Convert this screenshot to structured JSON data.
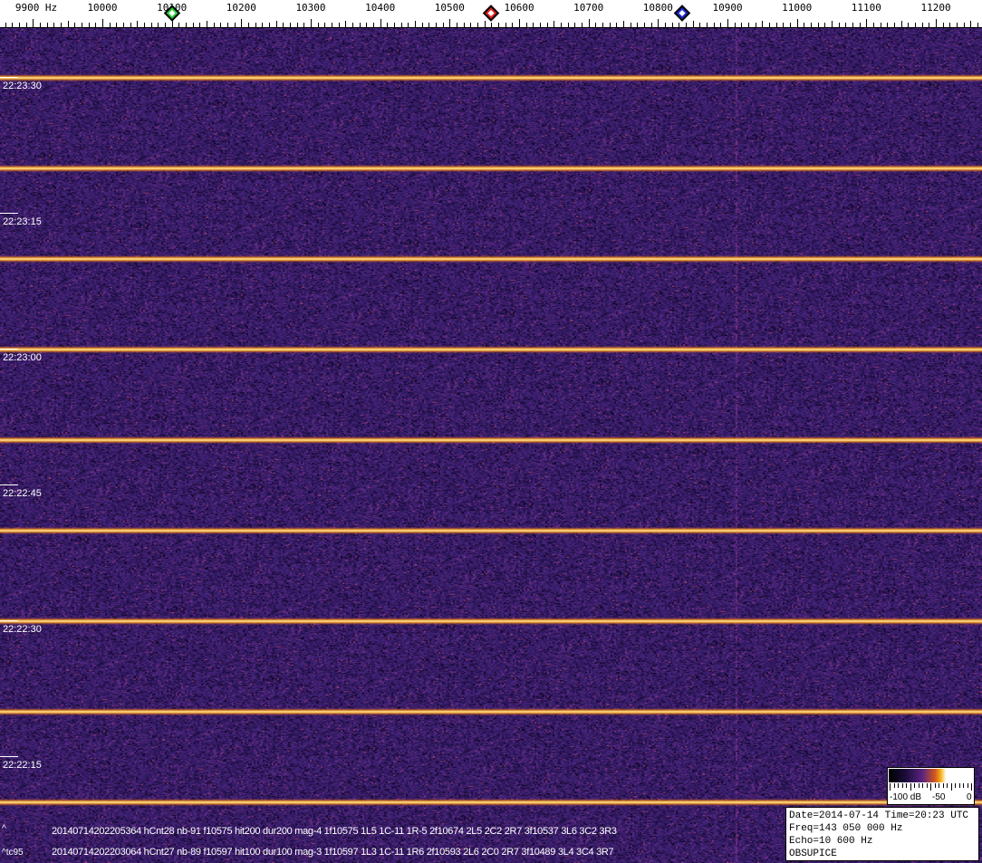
{
  "freq_axis": {
    "unit_label": "9900 Hz",
    "labels": [
      "10000",
      "10100",
      "10200",
      "10300",
      "10400",
      "10500",
      "10600",
      "10700",
      "10800",
      "10900",
      "11000",
      "11100",
      "11200"
    ],
    "markers": [
      {
        "name": "green-marker",
        "freq": 10100,
        "color": "#2ecc40"
      },
      {
        "name": "red-marker",
        "freq": 10560,
        "color": "#e02020"
      },
      {
        "name": "blue-marker",
        "freq": 10835,
        "color": "#1a2ad0"
      }
    ]
  },
  "time_labels": [
    "22:23:30",
    "22:23:15",
    "22:23:00",
    "22:22:45",
    "22:22:30",
    "22:22:15"
  ],
  "detections": [
    {
      "prefix": "^",
      "text": "20140714202205364 hCnt28 nb-91 f10575 hit200 dur200 mag-4 1f10575 1L5 1C-11 1R-5 2f10674 2L5 2C2 2R7 3f10537 3L6 3C2 3R3"
    },
    {
      "prefix": "^tc95",
      "text": "20140714202203064 hCnt27 nb-89 f10597 hit100 dur100 mag-3 1f10597 1L3 1C-11 1R6 2f10593 2L6 2C0 2R7 3f10489 3L4 3C4 3R7"
    }
  ],
  "color_scale": {
    "labels": [
      "-100 dB",
      "-50",
      "0"
    ]
  },
  "info_box": {
    "date_time": "Date=2014-07-14 Time=20:23 UTC",
    "freq": "Freq=143 050 000 Hz",
    "echo": "Echo=10 600 Hz",
    "station": "OBSUPICE"
  },
  "colors": {
    "background": "#3b206c",
    "signal": "#ffd040"
  }
}
